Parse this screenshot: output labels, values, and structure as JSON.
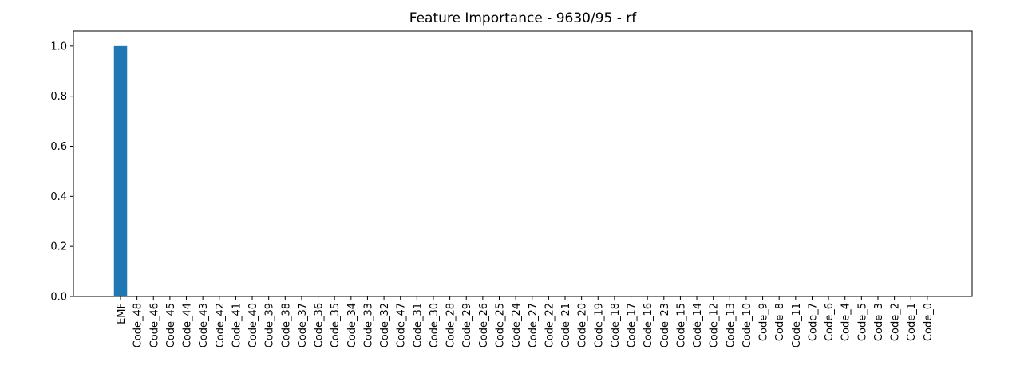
{
  "chart_data": {
    "type": "bar",
    "title": "Feature Importance - 9630/95 - rf",
    "xlabel": "",
    "ylabel": "",
    "ylim": [
      0,
      1.06
    ],
    "yticks": [
      "0.0",
      "0.2",
      "0.4",
      "0.6",
      "0.8",
      "1.0"
    ],
    "grid": false,
    "color": "#1f77b4",
    "categories": [
      "EMF",
      "Code_48",
      "Code_46",
      "Code_45",
      "Code_44",
      "Code_43",
      "Code_42",
      "Code_41",
      "Code_40",
      "Code_39",
      "Code_38",
      "Code_37",
      "Code_36",
      "Code_35",
      "Code_34",
      "Code_33",
      "Code_32",
      "Code_47",
      "Code_31",
      "Code_30",
      "Code_28",
      "Code_29",
      "Code_26",
      "Code_25",
      "Code_24",
      "Code_27",
      "Code_22",
      "Code_21",
      "Code_20",
      "Code_19",
      "Code_18",
      "Code_17",
      "Code_16",
      "Code_23",
      "Code_15",
      "Code_14",
      "Code_12",
      "Code_13",
      "Code_10",
      "Code_9",
      "Code_8",
      "Code_11",
      "Code_7",
      "Code_6",
      "Code_4",
      "Code_5",
      "Code_3",
      "Code_2",
      "Code_1",
      "Code_0"
    ],
    "values": [
      1.0,
      0,
      0,
      0,
      0,
      0,
      0,
      0,
      0,
      0,
      0,
      0,
      0,
      0,
      0,
      0,
      0,
      0,
      0,
      0,
      0,
      0,
      0,
      0,
      0,
      0,
      0,
      0,
      0,
      0,
      0,
      0,
      0,
      0,
      0,
      0,
      0,
      0,
      0,
      0,
      0,
      0,
      0,
      0,
      0,
      0,
      0,
      0,
      0,
      0
    ]
  }
}
